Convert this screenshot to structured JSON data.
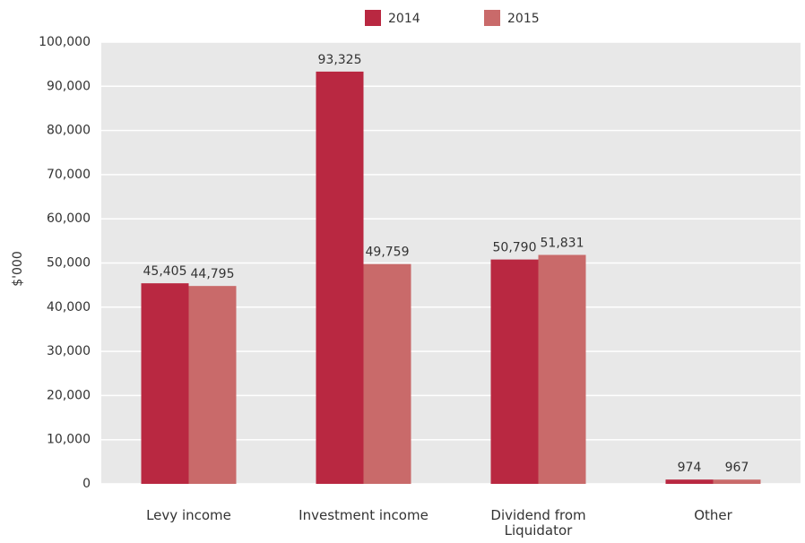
{
  "chart_data": {
    "type": "bar",
    "y_label": "$'000",
    "categories": [
      "Levy income",
      "Investment income",
      "Dividend from Liquidator",
      "Other"
    ],
    "series": [
      {
        "name": "2014",
        "color": "#b92841",
        "values": [
          45405,
          93325,
          50790,
          974
        ],
        "value_labels": [
          "45,405",
          "93,325",
          "50,790",
          "974"
        ]
      },
      {
        "name": "2015",
        "color": "#c96a6a",
        "values": [
          44795,
          49759,
          51831,
          967
        ],
        "value_labels": [
          "44,795",
          "49,759",
          "51,831",
          "967"
        ]
      }
    ],
    "ylim": [
      0,
      100000
    ],
    "yticks": [
      0,
      {
        "value": 10000,
        "label": "10,000"
      },
      {
        "value": 20000,
        "label": "20,000"
      },
      {
        "value": 30000,
        "label": "30,000"
      },
      {
        "value": 40000,
        "label": "40,000"
      },
      {
        "value": 50000,
        "label": "50,000"
      },
      {
        "value": 60000,
        "label": "60,000"
      },
      {
        "value": 70000,
        "label": "70,000"
      },
      {
        "value": 80000,
        "label": "80,000"
      },
      {
        "value": 90000,
        "label": "90,000"
      },
      {
        "value": 100000,
        "label": "100,000"
      }
    ],
    "grid": true,
    "legend": "top",
    "background": "#e8e8e8"
  }
}
